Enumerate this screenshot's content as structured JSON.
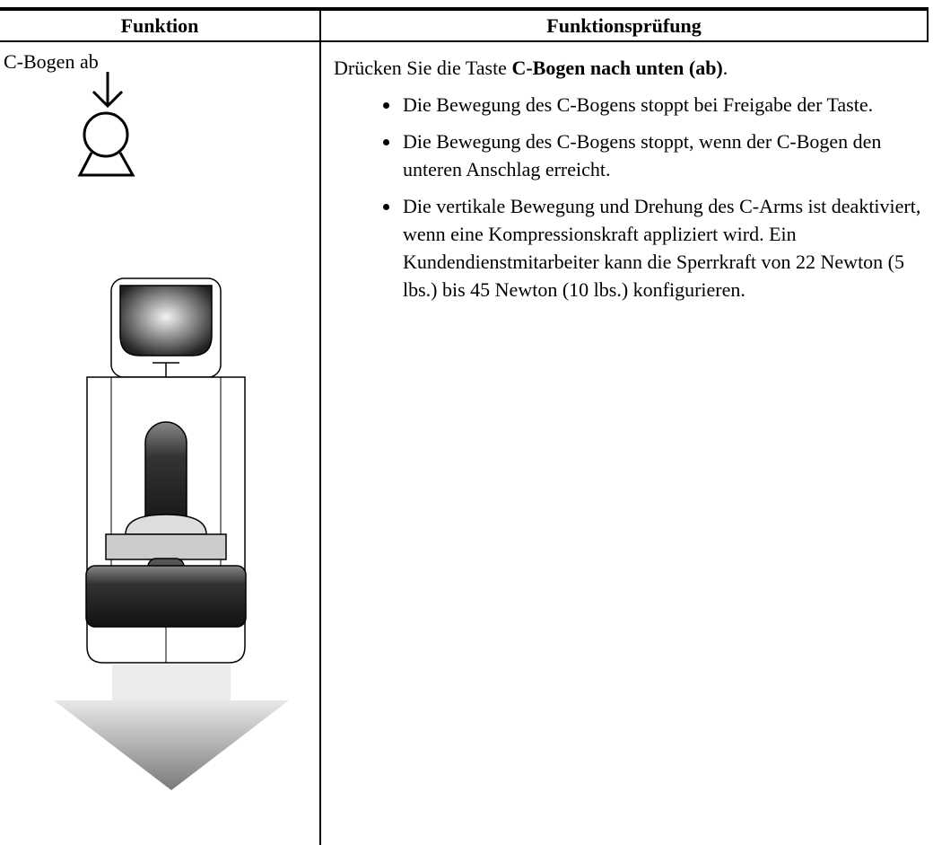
{
  "table": {
    "header": [
      "Funktion",
      "Funktionsprüfung"
    ],
    "rows": [
      {
        "function": "C-Bogen ab",
        "instruction": {
          "text": "Drücken Sie die Taste",
          "button": "C-Bogen nach unten (ab)",
          "end": "."
        },
        "bullets": [
          "Die Bewegung des C-Bogens stoppt bei Freigabe der Taste.",
          "Die Bewegung des C-Bogens stoppt, wenn der C-Bogen den unteren Anschlag erreicht.",
          "Die vertikale Bewegung und Drehung des C-Arms ist deaktiviert, wenn eine Kompressionskraft appliziert wird. Ein Kundendienstmitarbeiter kann die Sperrkraft von 22 Newton (5 lbs.) bis 45 Newton (10 lbs.) konfigurieren."
        ]
      }
    ]
  }
}
